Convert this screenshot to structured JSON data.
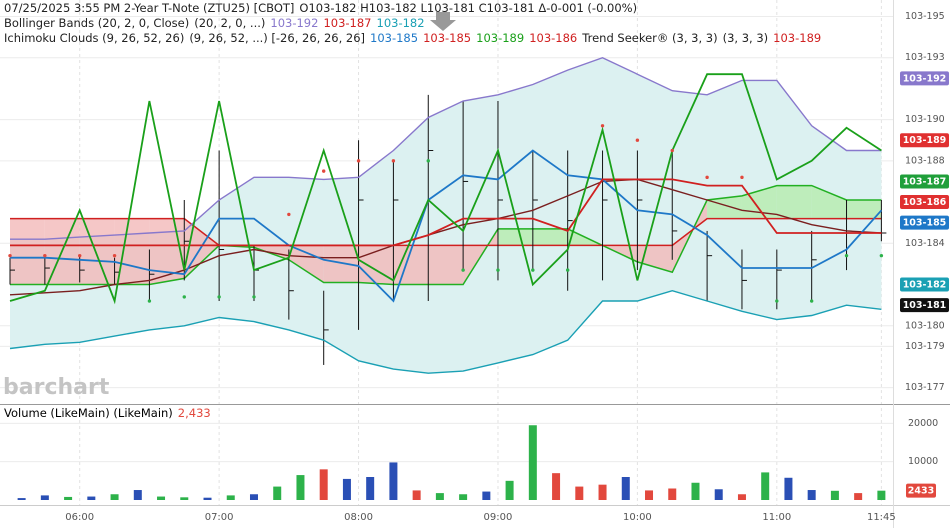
{
  "chart_data": [
    {
      "type": "ohlc",
      "legend_lines": [
        [
          {
            "text": "07/25/2025  3:55 PM 2-Year T-Note (ZTU25) [CBOT]",
            "color": "#222222"
          },
          {
            "text": "O103-182 H103-182 L103-181 C103-181 Δ-0-001 (-0.00%)",
            "color": "#222222"
          }
        ],
        [
          {
            "text": "Bollinger Bands (20, 2, 0, Close)",
            "color": "#222222"
          },
          {
            "text": "(20, 2, 0, ...)",
            "color": "#222222"
          },
          {
            "text": "103-192",
            "color": "#8878cc"
          },
          {
            "text": "103-187",
            "color": "#d02020"
          },
          {
            "text": "103-182",
            "color": "#1aa0b4"
          }
        ],
        [
          {
            "text": "Ichimoku Clouds (9, 26, 52, 26)",
            "color": "#222222"
          },
          {
            "text": "(9, 26, 52, ...) [-26, 26, 26, 26]",
            "color": "#222222"
          },
          {
            "text": "103-185",
            "color": "#1e78c8"
          },
          {
            "text": "103-185",
            "color": "#d02020"
          },
          {
            "text": "103-189",
            "color": "#1aa01a"
          },
          {
            "text": "103-186",
            "color": "#d02020"
          },
          {
            "text": "Trend Seeker® (3, 3, 3)",
            "color": "#222222"
          },
          {
            "text": "(3, 3, 3)",
            "color": "#222222"
          },
          {
            "text": "103-189",
            "color": "#d02020"
          }
        ]
      ],
      "watermark": "barchart",
      "x": [
        330,
        345,
        360,
        375,
        390,
        405,
        420,
        435,
        450,
        465,
        480,
        495,
        510,
        525,
        540,
        555,
        570,
        585,
        600,
        615,
        630,
        645,
        660,
        675,
        690,
        705
      ],
      "xlim": [
        330,
        710
      ],
      "xticks": [
        {
          "value": 360,
          "label": "06:00"
        },
        {
          "value": 420,
          "label": "07:00"
        },
        {
          "value": 480,
          "label": "08:00"
        },
        {
          "value": 540,
          "label": "09:00"
        },
        {
          "value": 600,
          "label": "10:00"
        },
        {
          "value": 660,
          "label": "11:00"
        },
        {
          "value": 705,
          "label": "11:45"
        }
      ],
      "ylim": [
        17.64,
        19.58
      ],
      "yticks": [
        {
          "value": 19.5,
          "label": "103-195"
        },
        {
          "value": 19.3,
          "label": "103-193"
        },
        {
          "value": 19.0,
          "label": "103-190"
        },
        {
          "value": 18.8,
          "label": "103-188"
        },
        {
          "value": 18.4,
          "label": "103-184"
        },
        {
          "value": 18.0,
          "label": "103-180"
        },
        {
          "value": 17.9,
          "label": "103-179"
        },
        {
          "value": 17.7,
          "label": "103-177"
        }
      ],
      "grid": true,
      "ohlc_color": "#111111",
      "high": [
        18.33,
        18.34,
        18.34,
        18.33,
        18.37,
        18.61,
        18.85,
        18.39,
        18.37,
        18.17,
        18.9,
        18.8,
        19.12,
        19.09,
        19.09,
        18.85,
        18.85,
        18.85,
        18.85,
        18.85,
        18.46,
        18.37,
        18.37,
        18.46,
        18.61,
        18.61
      ],
      "low": [
        18.2,
        18.2,
        18.21,
        18.2,
        18.12,
        18.22,
        18.12,
        18.12,
        18.03,
        17.81,
        17.98,
        18.12,
        18.12,
        18.27,
        18.22,
        18.27,
        18.17,
        18.22,
        18.27,
        18.32,
        18.12,
        18.08,
        18.08,
        18.12,
        18.27,
        18.41
      ],
      "close": [
        18.27,
        18.28,
        18.27,
        18.26,
        18.25,
        18.41,
        18.37,
        18.27,
        18.17,
        17.98,
        18.61,
        18.61,
        18.85,
        18.7,
        18.61,
        18.61,
        18.51,
        18.61,
        18.61,
        18.46,
        18.34,
        18.22,
        18.27,
        18.32,
        18.46,
        18.45
      ],
      "band_fill": "#dcf1f1",
      "series": [
        {
          "color": "#8878cc",
          "values": [
            18.42,
            18.42,
            18.43,
            18.44,
            18.45,
            18.46,
            18.61,
            18.72,
            18.72,
            18.71,
            18.72,
            18.85,
            19.01,
            19.09,
            19.12,
            19.17,
            19.24,
            19.3,
            19.22,
            19.14,
            19.12,
            19.19,
            19.19,
            18.97,
            18.85,
            18.85
          ]
        },
        {
          "color": "#1aa0b4",
          "values": [
            17.89,
            17.91,
            17.92,
            17.95,
            17.98,
            18.0,
            18.04,
            18.02,
            17.98,
            17.93,
            17.83,
            17.79,
            17.77,
            17.78,
            17.82,
            17.86,
            17.93,
            18.12,
            18.12,
            18.17,
            18.12,
            18.07,
            18.03,
            18.05,
            18.1,
            18.08
          ]
        },
        {
          "color": "#7a1f1f",
          "values": [
            18.15,
            18.16,
            18.17,
            18.2,
            18.22,
            18.27,
            18.34,
            18.37,
            18.34,
            18.33,
            18.33,
            18.39,
            18.44,
            18.49,
            18.52,
            18.56,
            18.63,
            18.7,
            18.71,
            18.66,
            18.61,
            18.56,
            18.54,
            18.49,
            18.46,
            18.45
          ]
        },
        {
          "color": "#1e78c8",
          "values": [
            18.33,
            18.33,
            18.32,
            18.31,
            18.27,
            18.25,
            18.52,
            18.52,
            18.39,
            18.32,
            18.29,
            18.12,
            18.61,
            18.73,
            18.71,
            18.85,
            18.73,
            18.71,
            18.56,
            18.54,
            18.44,
            18.28,
            18.28,
            18.28,
            18.37,
            18.56
          ]
        },
        {
          "color": "#d02020",
          "values": [
            18.39,
            18.39,
            18.39,
            18.39,
            18.39,
            18.39,
            18.39,
            18.39,
            18.39,
            18.39,
            18.39,
            18.39,
            18.44,
            18.52,
            18.52,
            18.52,
            18.46,
            18.71,
            18.71,
            18.71,
            18.68,
            18.68,
            18.45,
            18.45,
            18.45,
            18.45
          ]
        },
        {
          "color": "#1aa01a",
          "values": [
            18.12,
            18.17,
            18.56,
            18.12,
            19.09,
            18.27,
            19.09,
            18.27,
            18.33,
            18.85,
            18.32,
            18.22,
            18.61,
            18.46,
            18.85,
            18.2,
            18.37,
            18.95,
            18.22,
            18.85,
            19.22,
            19.22,
            18.71,
            18.8,
            18.96,
            18.85
          ]
        }
      ],
      "cloud": {
        "span_a": [
          18.2,
          18.2,
          18.2,
          18.2,
          18.2,
          18.23,
          18.39,
          18.38,
          18.32,
          18.21,
          18.21,
          18.2,
          18.2,
          18.2,
          18.47,
          18.47,
          18.47,
          18.39,
          18.31,
          18.26,
          18.61,
          18.63,
          18.68,
          18.68,
          18.61,
          18.61
        ],
        "span_b": [
          18.52,
          18.52,
          18.52,
          18.52,
          18.52,
          18.52,
          18.39,
          18.39,
          18.39,
          18.39,
          18.39,
          18.39,
          18.39,
          18.39,
          18.39,
          18.39,
          18.39,
          18.39,
          18.39,
          18.39,
          18.52,
          18.52,
          18.52,
          18.52,
          18.52,
          18.52
        ],
        "up_color": "#b6ecae",
        "down_color": "#f2b9b9",
        "color_a": "#22b022",
        "color_b": "#d02020"
      },
      "trend_seeker": {
        "values": [
          18.34,
          18.34,
          18.34,
          18.34,
          18.12,
          18.14,
          18.14,
          18.14,
          18.54,
          18.75,
          18.8,
          18.8,
          18.8,
          18.27,
          18.27,
          18.27,
          18.27,
          18.97,
          18.9,
          18.85,
          18.72,
          18.72,
          18.12,
          18.12,
          18.34,
          18.34
        ],
        "up_color": "#2db24a",
        "down_color": "#e2483d"
      },
      "last_labels": [
        {
          "value": 19.2,
          "label": "103-192",
          "color": "#8878cc"
        },
        {
          "value": 18.9,
          "label": "103-189",
          "color": "#e03030"
        },
        {
          "value": 18.7,
          "label": "103-187",
          "color": "#1f9f3a"
        },
        {
          "value": 18.6,
          "label": "103-186",
          "color": "#e03030"
        },
        {
          "value": 18.5,
          "label": "103-185",
          "color": "#1e78c8"
        },
        {
          "value": 18.2,
          "label": "103-182",
          "color": "#1aa0b4"
        },
        {
          "value": 18.1,
          "label": "103-181",
          "color": "#111111"
        }
      ]
    },
    {
      "type": "bar",
      "title": "Volume (LikeMain)  (LikeMain)",
      "last": {
        "value": 2433,
        "label": "2,433",
        "color": "#e2483d"
      },
      "x": [
        335,
        345,
        355,
        365,
        375,
        385,
        395,
        405,
        415,
        425,
        435,
        445,
        455,
        465,
        475,
        485,
        495,
        505,
        515,
        525,
        535,
        545,
        555,
        565,
        575,
        585,
        595,
        605,
        615,
        625,
        635,
        645,
        655,
        665,
        675,
        685,
        695,
        705
      ],
      "values": [
        500,
        1200,
        800,
        900,
        1500,
        2600,
        900,
        700,
        600,
        1200,
        1500,
        3500,
        6500,
        8000,
        5500,
        6000,
        9800,
        2500,
        1800,
        1500,
        2200,
        5000,
        19500,
        7000,
        3500,
        4000,
        6000,
        2500,
        3000,
        4500,
        2800,
        1500,
        7200,
        5800,
        2600,
        2400,
        1800,
        2433
      ],
      "colors": [
        "#2a4fb5",
        "#2a4fb5",
        "#2db24a",
        "#2a4fb5",
        "#2db24a",
        "#2a4fb5",
        "#2db24a",
        "#2db24a",
        "#2a4fb5",
        "#2db24a",
        "#2a4fb5",
        "#2db24a",
        "#2db24a",
        "#e2483d",
        "#2a4fb5",
        "#2a4fb5",
        "#2a4fb5",
        "#e2483d",
        "#2db24a",
        "#2db24a",
        "#2a4fb5",
        "#2db24a",
        "#2db24a",
        "#e2483d",
        "#e2483d",
        "#e2483d",
        "#2a4fb5",
        "#e2483d",
        "#e2483d",
        "#2db24a",
        "#2a4fb5",
        "#e2483d",
        "#2db24a",
        "#2a4fb5",
        "#2a4fb5",
        "#2db24a",
        "#e2483d",
        "#2db24a"
      ],
      "ylim": [
        0,
        24000
      ],
      "yticks": [
        10000,
        20000
      ]
    }
  ]
}
